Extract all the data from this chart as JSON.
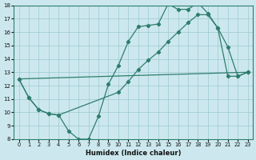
{
  "bg_color": "#cce8ee",
  "grid_color": "#9ec8cf",
  "line_color": "#2e7d6e",
  "xlabel": "Humidex (Indice chaleur)",
  "xlim": [
    -0.5,
    23.5
  ],
  "ylim": [
    8,
    18
  ],
  "yticks": [
    8,
    9,
    10,
    11,
    12,
    13,
    14,
    15,
    16,
    17,
    18
  ],
  "xticks": [
    0,
    1,
    2,
    3,
    4,
    5,
    6,
    7,
    8,
    9,
    10,
    11,
    12,
    13,
    14,
    15,
    16,
    17,
    18,
    19,
    20,
    21,
    22,
    23
  ],
  "line1_x": [
    0,
    1,
    2,
    3,
    4,
    5,
    6,
    7,
    8,
    9,
    10,
    11,
    12,
    13,
    14,
    15,
    16,
    17,
    18,
    19,
    20,
    21,
    22,
    23
  ],
  "line1_y": [
    12.5,
    11.1,
    10.2,
    9.9,
    9.8,
    8.6,
    8.0,
    8.0,
    9.7,
    12.1,
    13.5,
    15.3,
    16.4,
    16.5,
    16.6,
    18.1,
    17.7,
    17.7,
    18.2,
    17.4,
    16.3,
    14.9,
    12.7,
    13.0
  ],
  "line2_x": [
    0,
    1,
    2,
    3,
    4,
    10,
    11,
    12,
    13,
    14,
    15,
    16,
    17,
    18,
    19,
    20,
    21,
    22,
    23
  ],
  "line2_y": [
    12.5,
    11.1,
    10.2,
    9.9,
    9.8,
    11.5,
    12.3,
    13.2,
    13.9,
    14.5,
    15.3,
    16.0,
    16.7,
    17.3,
    17.3,
    16.3,
    12.7,
    12.7,
    13.0
  ],
  "line3_x": [
    0,
    23
  ],
  "line3_y": [
    12.5,
    13.0
  ]
}
